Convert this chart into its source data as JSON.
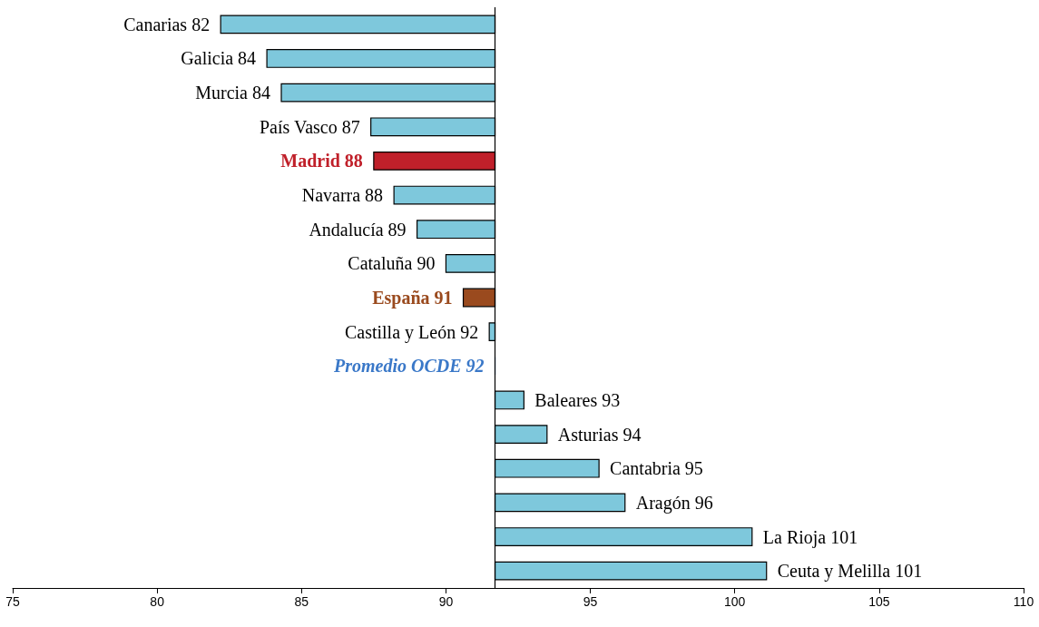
{
  "chart_data": {
    "type": "bar",
    "orientation": "horizontal",
    "color": "#7ec8dc",
    "categories": [
      "Canarias 82",
      "Galicia 84",
      "Murcia 84",
      "País Vasco 87",
      "Madrid 88",
      "Navarra 88",
      "Andalucía 89",
      "Cataluña 90",
      "España 91",
      "Castilla y León 92",
      "Promedio OCDE 92",
      "Baleares 93",
      "Asturias 94",
      "Cantabria 95",
      "Aragón 96",
      "La Rioja 101",
      "Ceuta y Melilla 101"
    ],
    "base": [
      91.7,
      91.7,
      91.7,
      91.7,
      91.7,
      91.7,
      91.7,
      91.7,
      91.7,
      91.7,
      91.7,
      91.7,
      91.7,
      91.7,
      91.7,
      91.7,
      91.7
    ],
    "values": [
      -9.5,
      -7.9,
      -7.4,
      -4.3,
      -4.2,
      -3.5,
      -2.7,
      -1.7,
      -1.1,
      -0.2,
      0,
      1.0,
      1.8,
      3.6,
      4.5,
      8.9,
      9.4
    ],
    "colors": [
      "#7ec8dc",
      "#7ec8dc",
      "#7ec8dc",
      "#7ec8dc",
      "#c0202a",
      "#7ec8dc",
      "#7ec8dc",
      "#7ec8dc",
      "#9a4a1e",
      "#7ec8dc",
      "#3a78c8",
      "#7ec8dc",
      "#7ec8dc",
      "#7ec8dc",
      "#7ec8dc",
      "#7ec8dc",
      "#7ec8dc"
    ],
    "xlim": [
      75,
      110
    ],
    "xticks": [
      75,
      80,
      85,
      90,
      95,
      100,
      105,
      110
    ],
    "ref_lines": [
      {
        "axis": "x",
        "value": 91.7,
        "color": "#000000"
      }
    ],
    "grid": false
  }
}
